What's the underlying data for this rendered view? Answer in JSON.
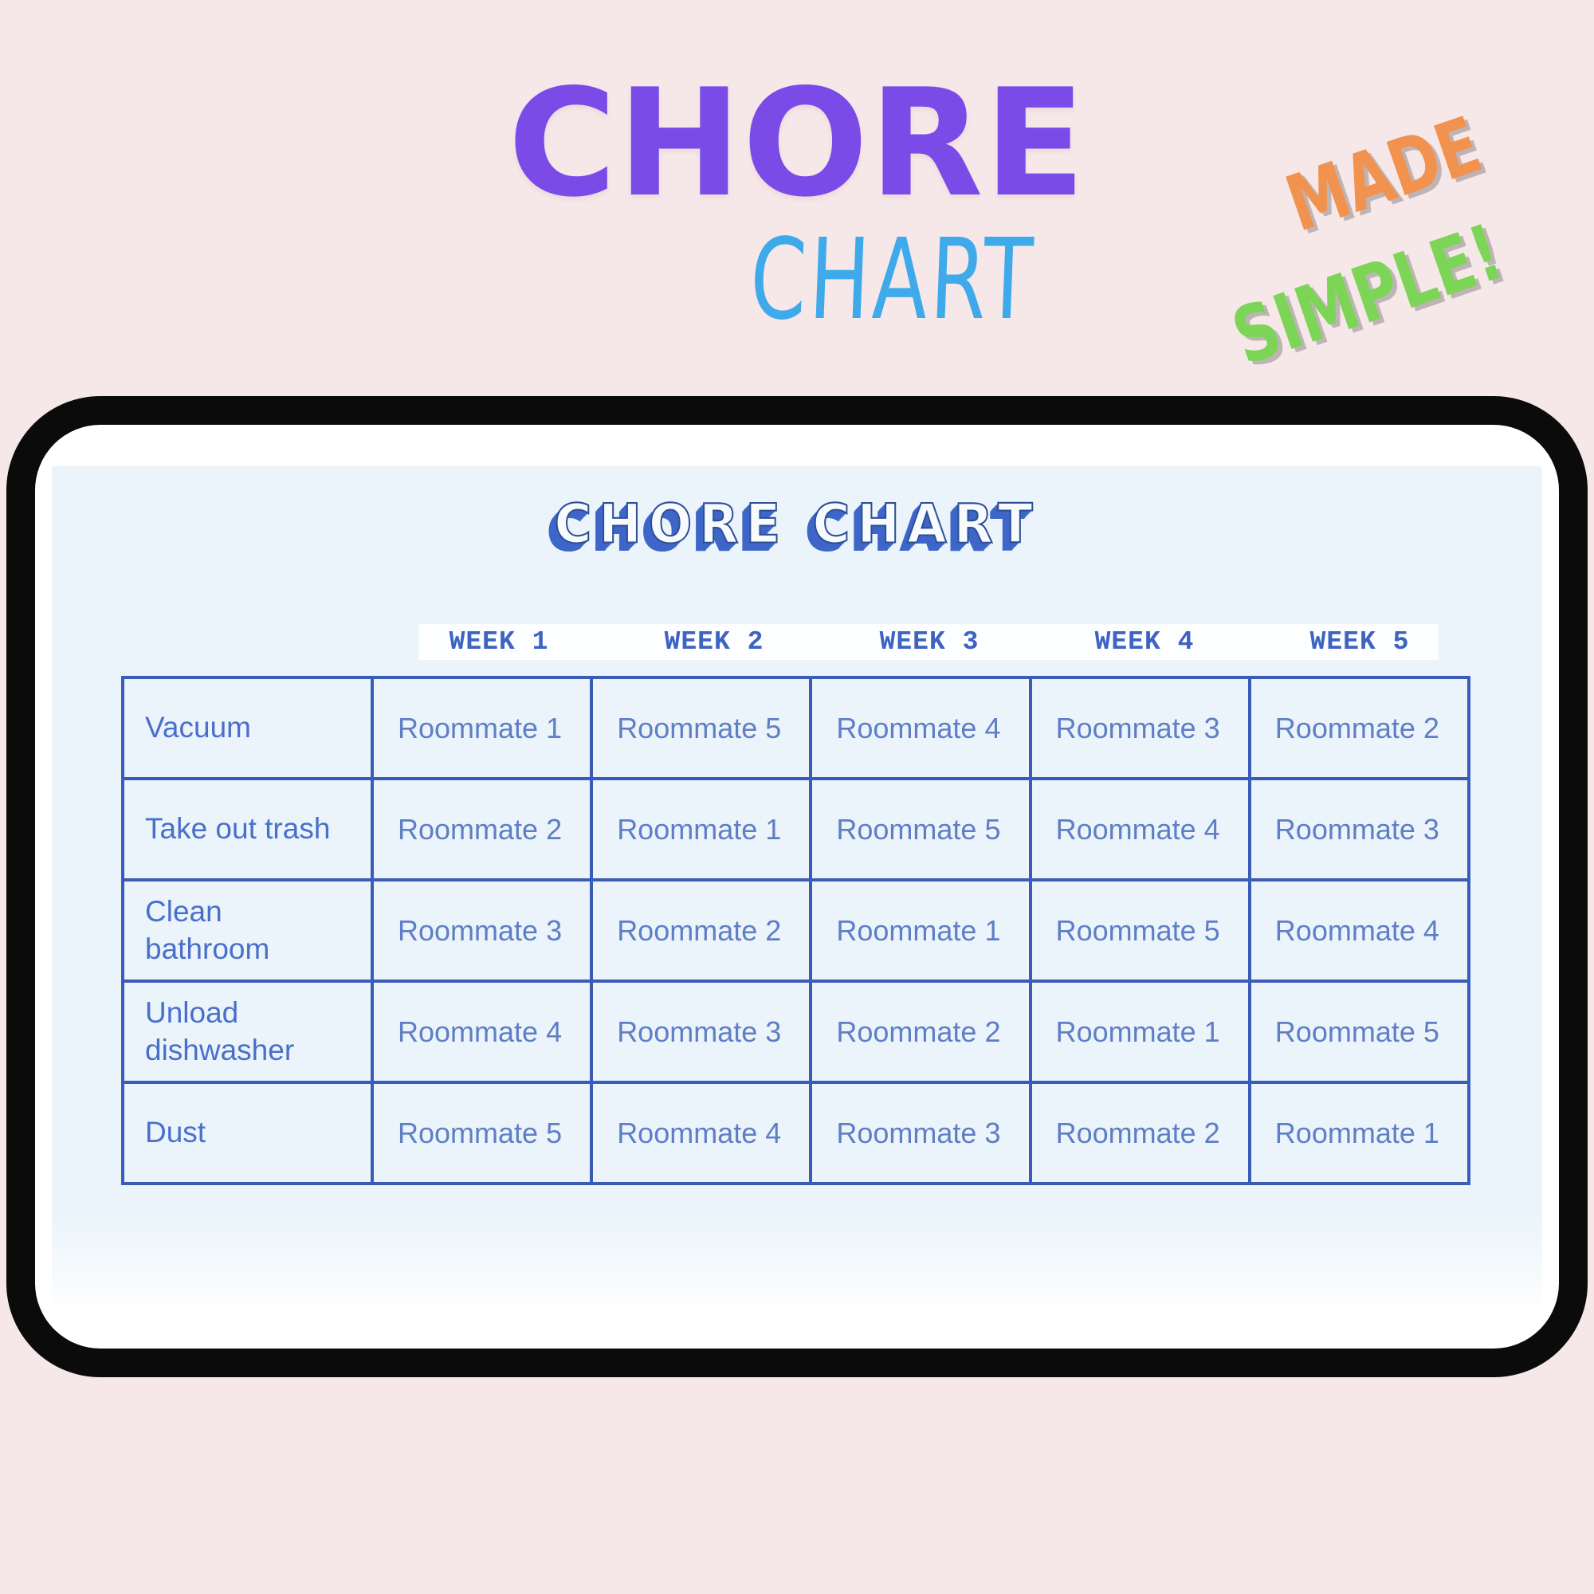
{
  "colors": {
    "background_pink": "#F6E7E8",
    "title_purple": "#7B4BE8",
    "subtitle_sky_blue": "#3FAAEA",
    "badge_orange": "#F1924E",
    "badge_green": "#7CD556",
    "tablet_frame_black": "#0B0B0B",
    "screen_bezel_white": "#FFFFFF",
    "page_light_blue": "#EAF4FA",
    "table_border_blue": "#3A5CB8",
    "chore_text_blue": "#4A6FCB",
    "assignment_text_blue": "#5F7EC5",
    "week_header_blue": "#3D63C3",
    "page_title_extrude_blue": "#3E66C9"
  },
  "header": {
    "title": "CHORE",
    "subtitle": "CHART",
    "badge_line1": "MADE",
    "badge_line2": "SIMPLE!"
  },
  "tablet_page": {
    "title": "CHORE CHART",
    "chart_data": {
      "type": "table",
      "title": "CHORE CHART",
      "week_headers": [
        "WEEK 1",
        "WEEK 2",
        "WEEK 3",
        "WEEK 4",
        "WEEK 5"
      ],
      "rows": [
        {
          "chore": "Vacuum",
          "assignments": [
            "Roommate 1",
            "Roommate 5",
            "Roommate 4",
            "Roommate 3",
            "Roommate 2"
          ]
        },
        {
          "chore": "Take out trash",
          "assignments": [
            "Roommate 2",
            "Roommate 1",
            "Roommate 5",
            "Roommate 4",
            "Roommate 3"
          ]
        },
        {
          "chore": "Clean\nbathroom",
          "assignments": [
            "Roommate 3",
            "Roommate 2",
            "Roommate 1",
            "Roommate 5",
            "Roommate 4"
          ]
        },
        {
          "chore": "Unload\ndishwasher",
          "assignments": [
            "Roommate 4",
            "Roommate 3",
            "Roommate 2",
            "Roommate 1",
            "Roommate 5"
          ]
        },
        {
          "chore": "Dust",
          "assignments": [
            "Roommate 5",
            "Roommate 4",
            "Roommate 3",
            "Roommate 2",
            "Roommate 1"
          ]
        }
      ]
    }
  }
}
